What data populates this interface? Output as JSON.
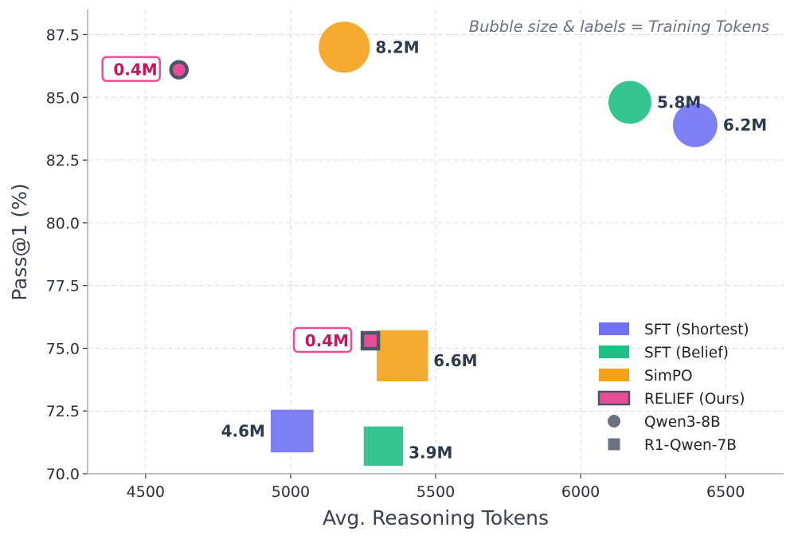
{
  "chart_data": {
    "type": "scatter",
    "title": "",
    "annotation": "Bubble size & labels = Training Tokens",
    "xlabel": "Avg. Reasoning Tokens",
    "ylabel": "Pass@1 (%)",
    "xlim": [
      4300,
      6700
    ],
    "ylim": [
      70.0,
      88.5
    ],
    "xticks": [
      4500,
      5000,
      5500,
      6000,
      6500
    ],
    "yticks": [
      70.0,
      72.5,
      75.0,
      77.5,
      80.0,
      82.5,
      85.0,
      87.5
    ],
    "ytick_labels": [
      "70.0",
      "72.5",
      "75.0",
      "77.5",
      "80.0",
      "82.5",
      "85.0",
      "87.5"
    ],
    "grid": true,
    "legend_position": "bottom-right",
    "colors": {
      "SFT (Shortest)": "#6f72f2",
      "SFT (Belief)": "#1fbf85",
      "SimPO": "#f5a21a",
      "RELIEF (Ours)": "#e84d96",
      "edge": "#4a5568",
      "marker_legend": "#6b7280"
    },
    "series": [
      {
        "name": "SFT (Shortest)",
        "points": [
          {
            "model": "Qwen3-8B",
            "x": 6395,
            "y": 83.9,
            "tokens": 6.2,
            "label": "6.2M"
          },
          {
            "model": "R1-Qwen-7B",
            "x": 5005,
            "y": 71.7,
            "tokens": 4.6,
            "label": "4.6M"
          }
        ]
      },
      {
        "name": "SFT (Belief)",
        "points": [
          {
            "model": "Qwen3-8B",
            "x": 6170,
            "y": 84.8,
            "tokens": 5.8,
            "label": "5.8M"
          },
          {
            "model": "R1-Qwen-7B",
            "x": 5320,
            "y": 71.1,
            "tokens": 3.9,
            "label": "3.9M"
          }
        ]
      },
      {
        "name": "SimPO",
        "points": [
          {
            "model": "Qwen3-8B",
            "x": 5185,
            "y": 87.0,
            "tokens": 8.2,
            "label": "8.2M"
          },
          {
            "model": "R1-Qwen-7B",
            "x": 5385,
            "y": 74.7,
            "tokens": 6.6,
            "label": "6.6M"
          }
        ]
      },
      {
        "name": "RELIEF (Ours)",
        "points": [
          {
            "model": "Qwen3-8B",
            "x": 4615,
            "y": 86.1,
            "tokens": 0.4,
            "label": "0.4M"
          },
          {
            "model": "R1-Qwen-7B",
            "x": 5275,
            "y": 75.3,
            "tokens": 0.4,
            "label": "0.4M"
          }
        ]
      }
    ],
    "legend": {
      "series": [
        "SFT (Shortest)",
        "SFT (Belief)",
        "SimPO",
        "RELIEF (Ours)"
      ],
      "markers": [
        {
          "name": "Qwen3-8B",
          "shape": "circle"
        },
        {
          "name": "R1-Qwen-7B",
          "shape": "square"
        }
      ]
    }
  }
}
